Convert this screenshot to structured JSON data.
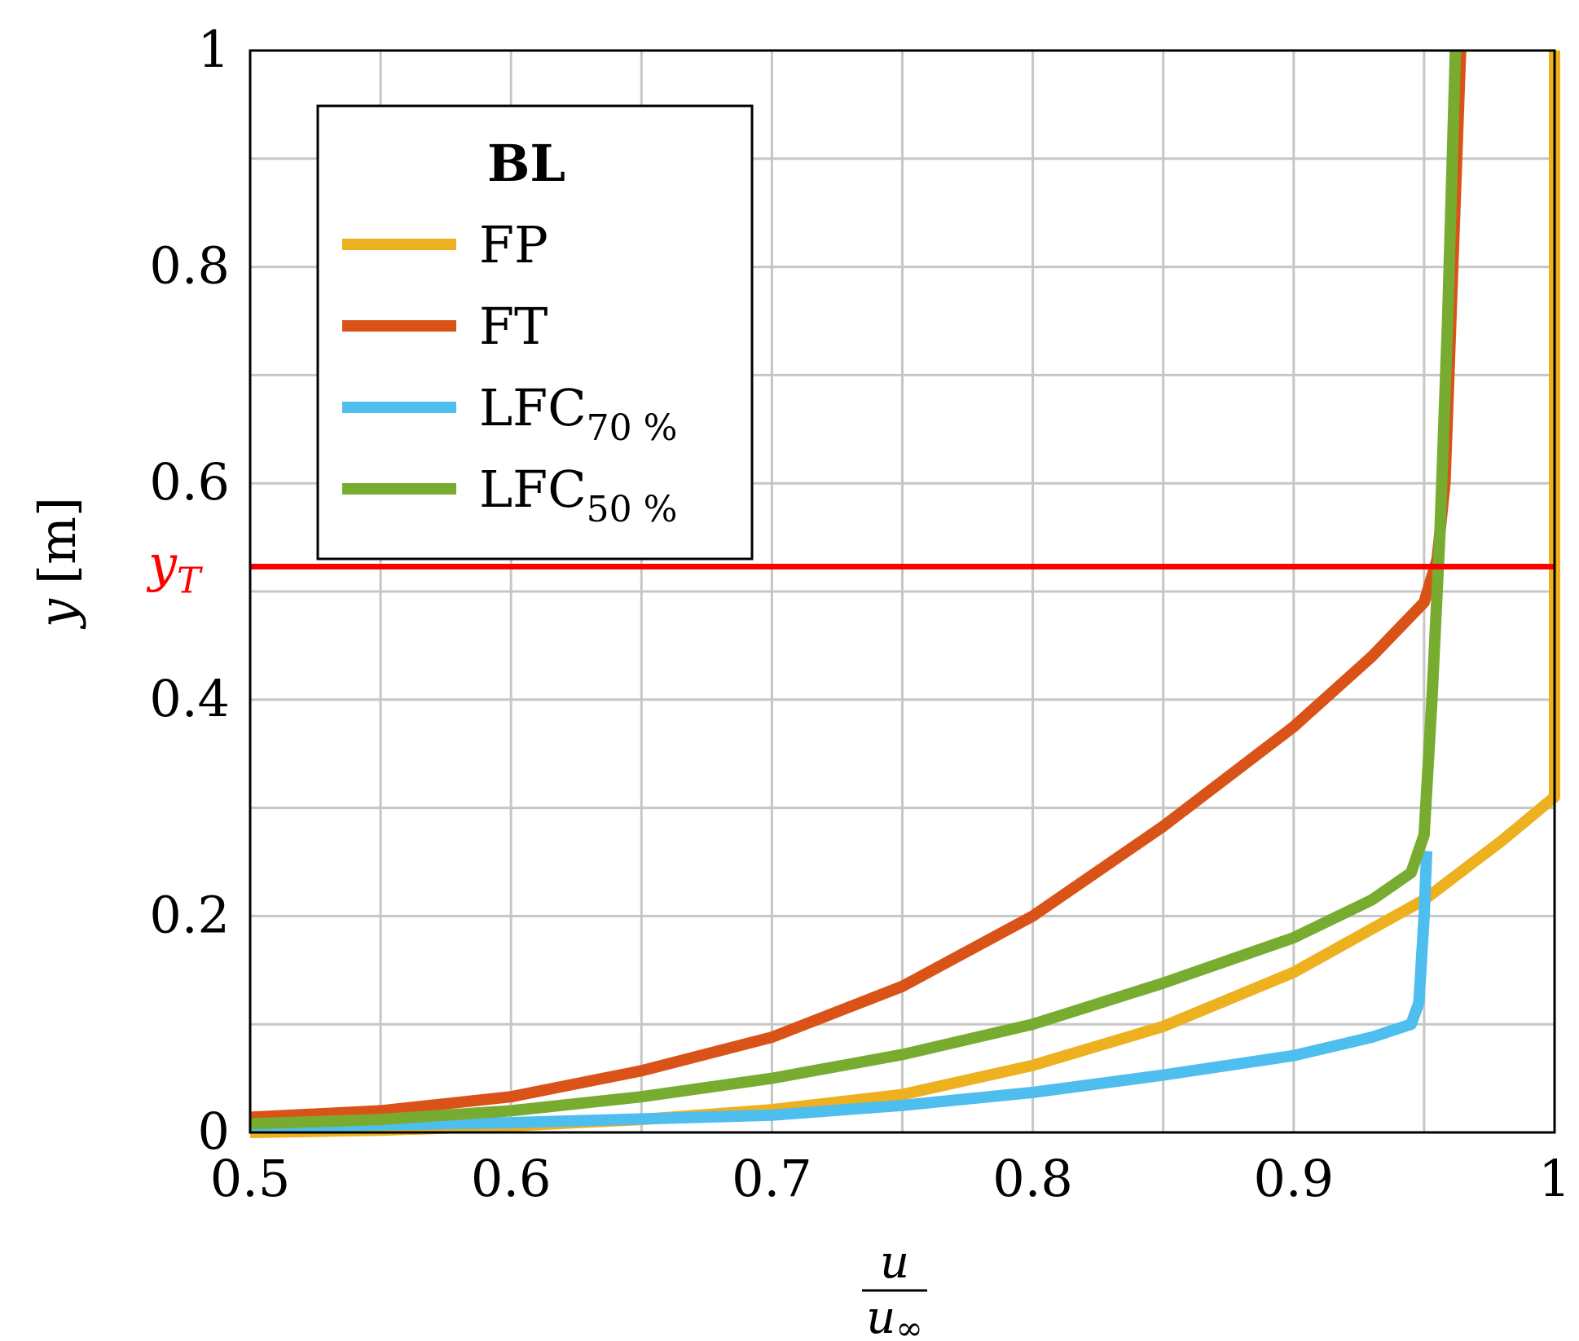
{
  "chart_data": {
    "type": "line",
    "xlim": [
      0.5,
      1
    ],
    "ylim": [
      0,
      1
    ],
    "x_ticks": [
      "0.5",
      "0.6",
      "0.7",
      "0.8",
      "0.9",
      "1"
    ],
    "y_ticks": [
      "0",
      "0.2",
      "0.4",
      "0.6",
      "0.8",
      "1"
    ],
    "ylabel": {
      "symbol": "y",
      "unit": "[m]"
    },
    "xlabel": {
      "numerator": "u",
      "denominator": "u",
      "denominator_subscript": "∞"
    },
    "grid": true,
    "grid_minor": true,
    "legend": {
      "title": "BL",
      "placement": "top-left",
      "entries": [
        {
          "label": "FP",
          "subscript": ""
        },
        {
          "label": "FT",
          "subscript": ""
        },
        {
          "label": "LFC",
          "subscript": "70 %"
        },
        {
          "label": "LFC",
          "subscript": "50 %"
        }
      ]
    },
    "reference_line": {
      "y": 0.523,
      "label": "y",
      "label_subscript": "T",
      "color": "#ff0000"
    },
    "series": [
      {
        "name": "FP",
        "color": "#EDB120",
        "points": [
          [
            0.5,
            0.0
          ],
          [
            0.55,
            0.002
          ],
          [
            0.6,
            0.006
          ],
          [
            0.65,
            0.012
          ],
          [
            0.7,
            0.021
          ],
          [
            0.75,
            0.035
          ],
          [
            0.8,
            0.062
          ],
          [
            0.85,
            0.098
          ],
          [
            0.9,
            0.148
          ],
          [
            0.95,
            0.215
          ],
          [
            0.98,
            0.27
          ],
          [
            1.0,
            0.31
          ],
          [
            1.0,
            1.0
          ]
        ]
      },
      {
        "name": "FT",
        "color": "#D95319",
        "points": [
          [
            0.5,
            0.014
          ],
          [
            0.55,
            0.02
          ],
          [
            0.6,
            0.033
          ],
          [
            0.65,
            0.057
          ],
          [
            0.7,
            0.088
          ],
          [
            0.75,
            0.135
          ],
          [
            0.8,
            0.2
          ],
          [
            0.85,
            0.283
          ],
          [
            0.9,
            0.375
          ],
          [
            0.93,
            0.44
          ],
          [
            0.95,
            0.49
          ],
          [
            0.955,
            0.53
          ],
          [
            0.958,
            0.6
          ],
          [
            0.961,
            0.8
          ],
          [
            0.964,
            1.0
          ]
        ]
      },
      {
        "name": "LFC70",
        "color": "#4DBEEE",
        "points": [
          [
            0.5,
            0.005
          ],
          [
            0.6,
            0.009
          ],
          [
            0.7,
            0.016
          ],
          [
            0.75,
            0.025
          ],
          [
            0.8,
            0.037
          ],
          [
            0.85,
            0.053
          ],
          [
            0.9,
            0.071
          ],
          [
            0.93,
            0.088
          ],
          [
            0.945,
            0.1
          ],
          [
            0.948,
            0.12
          ],
          [
            0.95,
            0.2
          ],
          [
            0.951,
            0.26
          ]
        ]
      },
      {
        "name": "LFC50",
        "color": "#77AC30",
        "points": [
          [
            0.5,
            0.008
          ],
          [
            0.55,
            0.012
          ],
          [
            0.6,
            0.02
          ],
          [
            0.65,
            0.033
          ],
          [
            0.7,
            0.05
          ],
          [
            0.75,
            0.072
          ],
          [
            0.8,
            0.1
          ],
          [
            0.85,
            0.138
          ],
          [
            0.9,
            0.18
          ],
          [
            0.93,
            0.215
          ],
          [
            0.945,
            0.24
          ],
          [
            0.95,
            0.275
          ],
          [
            0.953,
            0.4
          ],
          [
            0.956,
            0.55
          ],
          [
            0.959,
            0.75
          ],
          [
            0.962,
            1.0
          ]
        ]
      }
    ]
  }
}
